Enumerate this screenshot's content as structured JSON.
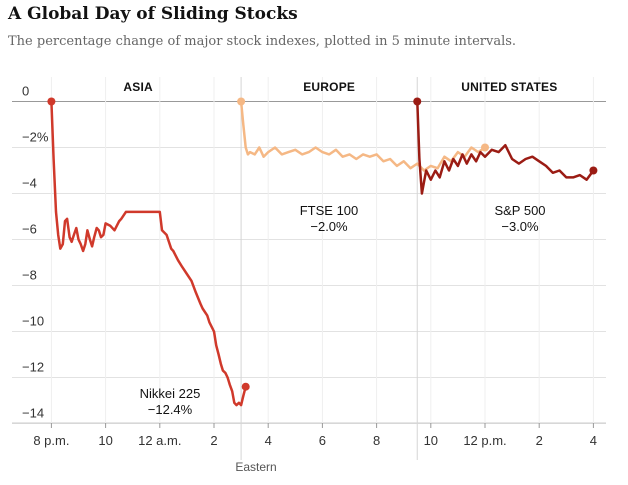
{
  "title": "A Global Day of Sliding Stocks",
  "subtitle": "The percentage change of major stock indexes, plotted in 5 minute intervals.",
  "chart_data": {
    "type": "line",
    "title": "A Global Day of Sliding Stocks",
    "subtitle": "The percentage change of major stock indexes, plotted in 5 minute intervals.",
    "xlabel": "Eastern",
    "ylabel": "",
    "ylim": [
      -14.5,
      0.5
    ],
    "xlim": [
      19.4,
      40.3
    ],
    "y_ticks": [
      0,
      -2,
      -4,
      -6,
      -8,
      -10,
      -12,
      -14
    ],
    "y_tick_labels": [
      "0",
      "−2%",
      "−4",
      "−6",
      "−8",
      "−10",
      "−12",
      "−14"
    ],
    "x_tick_values": [
      20,
      22,
      24,
      26,
      28,
      30,
      32,
      34,
      36,
      38,
      40
    ],
    "x_tick_labels": [
      "8 p.m.",
      "10",
      "12 a.m.",
      "2",
      "4",
      "6",
      "8",
      "10",
      "12 p.m.",
      "2",
      "4"
    ],
    "grid": true,
    "regions": [
      {
        "name": "ASIA",
        "start": 19.4,
        "end": 27.0
      },
      {
        "name": "EUROPE",
        "start": 27.0,
        "end": 33.5
      },
      {
        "name": "UNITED STATES",
        "start": 33.5,
        "end": 40.3
      }
    ],
    "series": [
      {
        "name": "Nikkei 225",
        "label_value": "−12.4%",
        "color": "#d0392b",
        "x": [
          20.0,
          20.08,
          20.17,
          20.25,
          20.33,
          20.42,
          20.5,
          20.58,
          20.67,
          20.75,
          20.83,
          20.92,
          21.0,
          21.08,
          21.17,
          21.25,
          21.33,
          21.42,
          21.5,
          21.58,
          21.67,
          21.75,
          21.83,
          21.92,
          22.0,
          22.17,
          22.33,
          22.5,
          22.58,
          22.75,
          23.0,
          23.25,
          23.5,
          23.75,
          24.0,
          24.08,
          24.25,
          24.42,
          24.5,
          24.67,
          24.83,
          25.0,
          25.17,
          25.33,
          25.5,
          25.58,
          25.75,
          25.83,
          26.0,
          26.08,
          26.17,
          26.25,
          26.33,
          26.42,
          26.5,
          26.58,
          26.67,
          26.75,
          26.83,
          26.92,
          27.0,
          27.08,
          27.17
        ],
        "values": [
          0.0,
          -2.5,
          -4.8,
          -5.8,
          -6.4,
          -6.2,
          -5.2,
          -5.1,
          -5.9,
          -6.1,
          -5.8,
          -5.5,
          -6.0,
          -6.2,
          -6.5,
          -6.2,
          -5.6,
          -6.0,
          -6.3,
          -5.9,
          -5.5,
          -5.6,
          -5.9,
          -5.8,
          -5.3,
          -5.4,
          -5.6,
          -5.2,
          -5.1,
          -4.8,
          -4.8,
          -4.8,
          -4.8,
          -4.8,
          -4.8,
          -5.6,
          -5.8,
          -6.4,
          -6.5,
          -6.9,
          -7.2,
          -7.5,
          -7.8,
          -8.3,
          -8.8,
          -9.0,
          -9.3,
          -9.6,
          -10.0,
          -10.6,
          -11.0,
          -11.4,
          -11.7,
          -11.8,
          -12.0,
          -12.3,
          -12.6,
          -13.1,
          -13.2,
          -13.1,
          -13.2,
          -12.8,
          -12.4
        ]
      },
      {
        "name": "FTSE 100",
        "label_value": "−2.0%",
        "color": "#f5b885",
        "x": [
          27.0,
          27.08,
          27.17,
          27.25,
          27.33,
          27.5,
          27.67,
          27.83,
          28.0,
          28.25,
          28.5,
          28.75,
          29.0,
          29.25,
          29.5,
          29.75,
          30.0,
          30.25,
          30.5,
          30.75,
          31.0,
          31.25,
          31.5,
          31.75,
          32.0,
          32.25,
          32.5,
          32.75,
          33.0,
          33.25,
          33.5,
          33.75,
          34.0,
          34.25,
          34.5,
          34.75,
          35.0,
          35.25,
          35.5,
          35.75,
          36.0
        ],
        "values": [
          0.0,
          -1.0,
          -2.0,
          -2.3,
          -2.2,
          -2.3,
          -2.0,
          -2.4,
          -2.2,
          -2.0,
          -2.3,
          -2.2,
          -2.1,
          -2.3,
          -2.2,
          -2.0,
          -2.2,
          -2.3,
          -2.1,
          -2.4,
          -2.3,
          -2.5,
          -2.3,
          -2.4,
          -2.3,
          -2.6,
          -2.5,
          -2.8,
          -2.6,
          -2.9,
          -2.7,
          -3.0,
          -2.8,
          -2.9,
          -2.4,
          -2.6,
          -2.2,
          -2.4,
          -2.0,
          -2.2,
          -2.0
        ]
      },
      {
        "name": "S&P 500",
        "label_value": "−3.0%",
        "color": "#9b1c14",
        "x": [
          33.5,
          33.58,
          33.67,
          33.75,
          33.83,
          34.0,
          34.17,
          34.33,
          34.5,
          34.67,
          34.83,
          35.0,
          35.17,
          35.33,
          35.5,
          35.67,
          35.83,
          36.0,
          36.25,
          36.5,
          36.75,
          37.0,
          37.25,
          37.5,
          37.75,
          38.0,
          38.25,
          38.5,
          38.75,
          39.0,
          39.25,
          39.5,
          39.75,
          40.0
        ],
        "values": [
          0.0,
          -2.5,
          -4.0,
          -3.5,
          -3.0,
          -3.4,
          -3.0,
          -3.3,
          -2.6,
          -3.0,
          -2.5,
          -2.8,
          -2.3,
          -2.7,
          -2.3,
          -2.6,
          -2.2,
          -2.4,
          -2.1,
          -2.2,
          -1.9,
          -2.5,
          -2.7,
          -2.5,
          -2.4,
          -2.6,
          -2.8,
          -3.1,
          -3.0,
          -3.3,
          -3.3,
          -3.2,
          -3.4,
          -3.0
        ]
      }
    ]
  }
}
